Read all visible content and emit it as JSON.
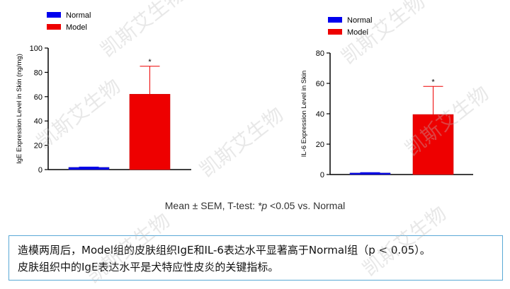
{
  "watermark": "凯斯艾生物",
  "chart_data": [
    {
      "type": "bar",
      "categories": [
        "Normal",
        "Model"
      ],
      "values": [
        1.8,
        62
      ],
      "errors": [
        0.3,
        23
      ],
      "significance": [
        "",
        "*"
      ],
      "colors": [
        "#0000ee",
        "#ee0000"
      ],
      "legend": [
        "Normal",
        "Model"
      ],
      "legend_placement": "top-left",
      "ylabel": "IgE Expression Level in Skin (ng/mg)",
      "ylim": [
        0,
        100
      ],
      "yticks": [
        0,
        20,
        40,
        60,
        80,
        100
      ]
    },
    {
      "type": "bar",
      "categories": [
        "Normal",
        "Model"
      ],
      "values": [
        1.0,
        39.5
      ],
      "errors": [
        0.3,
        18.5
      ],
      "significance": [
        "",
        "*"
      ],
      "colors": [
        "#0000ee",
        "#ee0000"
      ],
      "legend": [
        "Normal",
        "Model"
      ],
      "legend_placement": "top-center",
      "ylabel": "IL-6 Expression Level in Skin",
      "ylim": [
        0,
        80
      ],
      "yticks": [
        0,
        20,
        40,
        60,
        80
      ]
    }
  ],
  "footnote": {
    "prefix": "Mean ± SEM, T-test: ",
    "p_symbol": "*p",
    "suffix": " <0.05 vs. Normal"
  },
  "conclusion": {
    "line1": "造模两周后，Model组的皮肤组织IgE和IL-6表达水平显著高于Normal组（p < 0.05）。",
    "line2": "皮肤组织中的IgE表达水平是犬特应性皮炎的关键指标。"
  }
}
